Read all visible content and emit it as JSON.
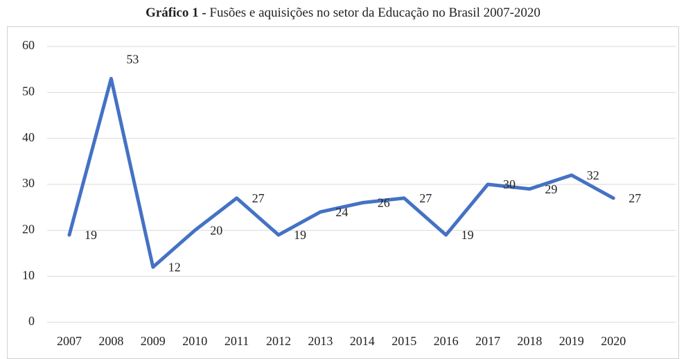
{
  "chart_data": {
    "type": "line",
    "title_label": "Gráfico 1 -",
    "title": "Fusões e aquisições no setor da Educação no Brasil 2007-2020",
    "categories": [
      "2007",
      "2008",
      "2009",
      "2010",
      "2011",
      "2012",
      "2013",
      "2014",
      "2015",
      "2016",
      "2017",
      "2018",
      "2019",
      "2020"
    ],
    "values": [
      19,
      53,
      12,
      20,
      27,
      19,
      24,
      26,
      27,
      19,
      30,
      29,
      32,
      27
    ],
    "color": "#4472c4",
    "ylim": [
      0,
      60
    ],
    "yticks": [
      0,
      10,
      20,
      30,
      40,
      50,
      60
    ],
    "grid": true
  }
}
